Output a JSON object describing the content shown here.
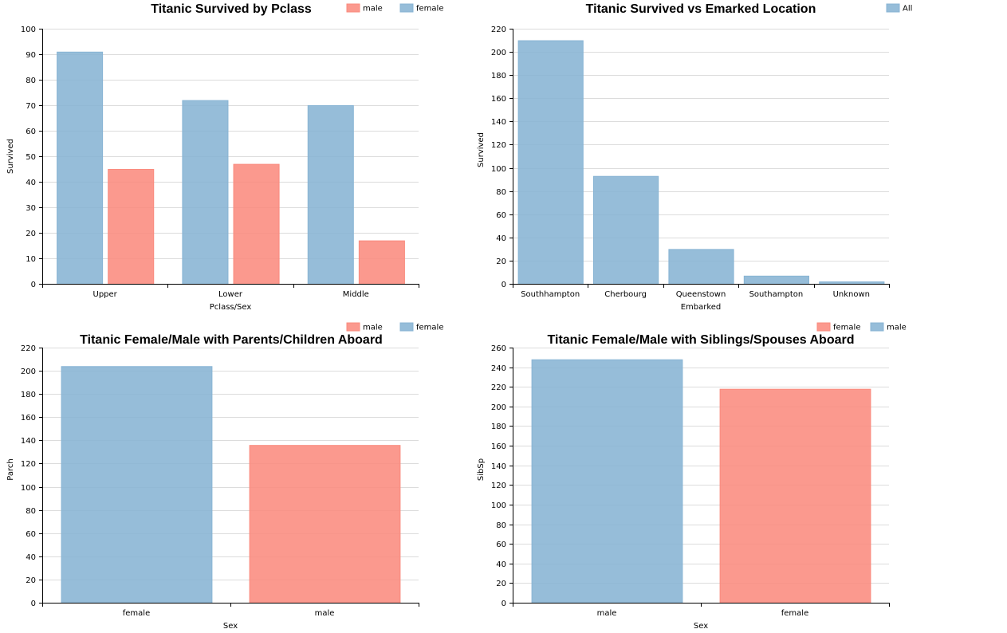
{
  "chart_data": [
    {
      "type": "bar",
      "title": "Titanic Survived by Pclass",
      "xlabel": "Pclass/Sex",
      "ylabel": "Survived",
      "categories": [
        "Upper",
        "Lower",
        "Middle"
      ],
      "series": [
        {
          "name": "female",
          "color": "#88b4d4",
          "values": [
            91,
            72,
            70
          ]
        },
        {
          "name": "male",
          "color": "#fa8b7e",
          "values": [
            45,
            47,
            17
          ]
        }
      ],
      "legend_order": [
        "male",
        "female"
      ],
      "legend_placement": "top-right",
      "ylim": [
        0,
        100
      ],
      "yticks": [
        0,
        10,
        20,
        30,
        40,
        50,
        60,
        70,
        80,
        90,
        100
      ],
      "grid": true
    },
    {
      "type": "bar",
      "title": "Titanic Survived vs Emarked Location",
      "xlabel": "Embarked",
      "ylabel": "Survived",
      "categories": [
        "Southhampton",
        "Cherbourg",
        "Queenstown",
        "Southampton",
        "Unknown"
      ],
      "series": [
        {
          "name": "All",
          "color": "#88b4d4",
          "values": [
            210,
            93,
            30,
            7,
            2
          ]
        }
      ],
      "legend_order": [
        "All"
      ],
      "legend_placement": "top-right",
      "ylim": [
        0,
        220
      ],
      "yticks": [
        0,
        20,
        40,
        60,
        80,
        100,
        120,
        140,
        160,
        180,
        200,
        220
      ],
      "grid": true
    },
    {
      "type": "bar",
      "title": "Titanic Female/Male with Parents/Children Aboard",
      "xlabel": "Sex",
      "ylabel": "Parch",
      "categories": [
        "female",
        "male"
      ],
      "bars": [
        {
          "category": "female",
          "value": 204,
          "color": "#88b4d4"
        },
        {
          "category": "male",
          "value": 136,
          "color": "#fa8b7e"
        }
      ],
      "legend": [
        {
          "name": "male",
          "color": "#fa8b7e"
        },
        {
          "name": "female",
          "color": "#88b4d4"
        }
      ],
      "legend_placement": "top-right",
      "ylim": [
        0,
        220
      ],
      "yticks": [
        0,
        20,
        40,
        60,
        80,
        100,
        120,
        140,
        160,
        180,
        200,
        220
      ],
      "grid": true
    },
    {
      "type": "bar",
      "title": "Titanic Female/Male with Siblings/Spouses Aboard",
      "xlabel": "Sex",
      "ylabel": "SibSp",
      "categories": [
        "male",
        "female"
      ],
      "bars": [
        {
          "category": "male",
          "value": 248,
          "color": "#88b4d4"
        },
        {
          "category": "female",
          "value": 218,
          "color": "#fa8b7e"
        }
      ],
      "legend": [
        {
          "name": "female",
          "color": "#fa8b7e"
        },
        {
          "name": "male",
          "color": "#88b4d4"
        }
      ],
      "legend_placement": "top-right",
      "ylim": [
        0,
        260
      ],
      "yticks": [
        0,
        20,
        40,
        60,
        80,
        100,
        120,
        140,
        160,
        180,
        200,
        220,
        240,
        260
      ],
      "grid": true
    }
  ]
}
